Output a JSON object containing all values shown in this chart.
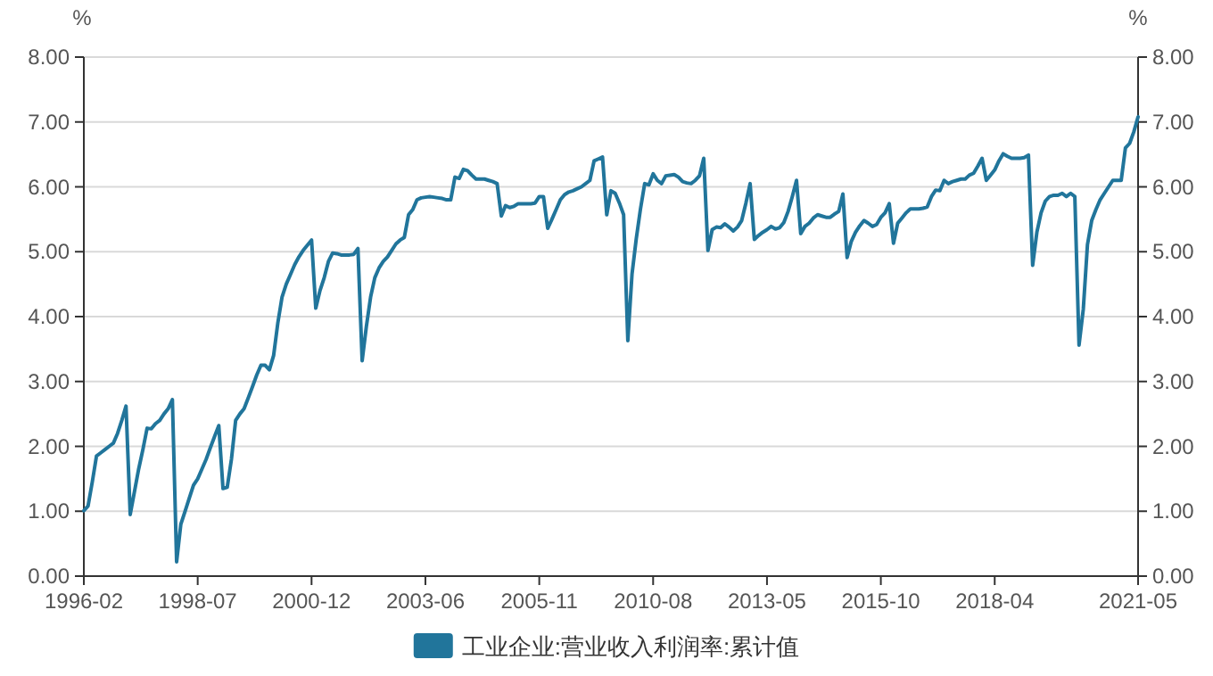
{
  "chart_data": {
    "type": "line",
    "ylabel": "%",
    "y2label": "%",
    "categories": [
      "1996-02",
      null,
      null,
      null,
      null,
      null,
      null,
      null,
      null,
      null,
      null,
      null,
      null,
      null,
      null,
      null,
      null,
      null,
      null,
      null,
      null,
      null,
      null,
      null,
      null,
      null,
      null,
      "1998-07",
      null,
      null,
      null,
      null,
      null,
      null,
      null,
      null,
      null,
      null,
      null,
      null,
      null,
      null,
      null,
      null,
      null,
      null,
      null,
      null,
      null,
      null,
      null,
      null,
      null,
      null,
      "2000-12",
      null,
      null,
      null,
      null,
      null,
      null,
      null,
      null,
      null,
      null,
      null,
      null,
      null,
      null,
      null,
      null,
      null,
      null,
      null,
      null,
      null,
      null,
      null,
      null,
      null,
      null,
      "2003-06",
      null,
      null,
      null,
      null,
      null,
      null,
      null,
      null,
      null,
      null,
      null,
      null,
      null,
      null,
      null,
      null,
      null,
      null,
      null,
      null,
      null,
      null,
      null,
      null,
      null,
      null,
      "2005-11",
      null,
      null,
      null,
      null,
      null,
      null,
      null,
      null,
      null,
      null,
      null,
      null,
      null,
      null,
      null,
      null,
      null,
      null,
      null,
      null,
      null,
      null,
      null,
      null,
      null,
      null,
      "2010-08",
      null,
      null,
      null,
      null,
      null,
      null,
      null,
      null,
      null,
      null,
      null,
      null,
      null,
      null,
      null,
      null,
      null,
      null,
      null,
      null,
      null,
      null,
      null,
      null,
      null,
      null,
      "2013-05",
      null,
      null,
      null,
      null,
      null,
      null,
      null,
      null,
      null,
      null,
      null,
      null,
      null,
      null,
      null,
      null,
      null,
      null,
      null,
      null,
      null,
      null,
      null,
      null,
      null,
      null,
      "2015-10",
      null,
      null,
      null,
      null,
      null,
      null,
      null,
      null,
      null,
      null,
      null,
      null,
      null,
      null,
      null,
      null,
      null,
      null,
      null,
      null,
      null,
      null,
      null,
      null,
      null,
      null,
      "2018-04",
      null,
      null,
      null,
      null,
      null,
      null,
      null,
      null,
      null,
      null,
      null,
      null,
      null,
      null,
      null,
      null,
      null,
      null,
      null,
      null,
      null,
      null,
      null,
      null,
      null,
      null,
      null,
      null,
      null,
      null,
      null,
      null,
      null,
      "2021-05"
    ],
    "series": [
      {
        "name": "工业企业:营业收入利润率:累计值",
        "color": "#21759b",
        "values": [
          1.01,
          1.08,
          1.45,
          1.85,
          1.9,
          1.95,
          2.0,
          2.05,
          2.2,
          2.4,
          2.62,
          0.95,
          1.3,
          1.65,
          1.95,
          2.28,
          2.27,
          2.35,
          2.4,
          2.5,
          2.58,
          2.72,
          0.22,
          0.8,
          1.0,
          1.2,
          1.4,
          1.5,
          1.65,
          1.8,
          1.98,
          2.15,
          2.32,
          1.35,
          1.37,
          1.8,
          2.4,
          2.5,
          2.58,
          2.75,
          2.92,
          3.1,
          3.25,
          3.25,
          3.18,
          3.4,
          3.9,
          4.3,
          4.5,
          4.65,
          4.8,
          4.92,
          5.02,
          5.1,
          5.18,
          4.13,
          4.4,
          4.6,
          4.85,
          4.98,
          4.97,
          4.95,
          4.95,
          4.95,
          4.96,
          5.05,
          3.32,
          3.85,
          4.3,
          4.6,
          4.75,
          4.85,
          4.92,
          5.02,
          5.12,
          5.18,
          5.22,
          5.57,
          5.65,
          5.8,
          5.83,
          5.84,
          5.85,
          5.84,
          5.83,
          5.82,
          5.8,
          5.8,
          6.15,
          6.13,
          6.27,
          6.25,
          6.18,
          6.12,
          6.12,
          6.12,
          6.1,
          6.08,
          6.05,
          5.55,
          5.71,
          5.68,
          5.7,
          5.74,
          5.74,
          5.74,
          5.74,
          5.75,
          5.85,
          5.85,
          5.36,
          5.5,
          5.65,
          5.8,
          5.88,
          5.92,
          5.94,
          5.97,
          6.0,
          6.05,
          6.1,
          6.4,
          6.43,
          6.46,
          5.57,
          5.94,
          5.9,
          5.75,
          5.57,
          3.63,
          4.66,
          5.2,
          5.66,
          6.05,
          6.03,
          6.2,
          6.1,
          6.05,
          6.17,
          6.18,
          6.19,
          6.15,
          6.08,
          6.06,
          6.05,
          6.1,
          6.17,
          6.44,
          5.02,
          5.34,
          5.38,
          5.37,
          5.43,
          5.38,
          5.32,
          5.38,
          5.48,
          5.75,
          6.05,
          5.19,
          5.25,
          5.3,
          5.34,
          5.39,
          5.35,
          5.37,
          5.45,
          5.62,
          5.85,
          6.1,
          5.28,
          5.39,
          5.44,
          5.52,
          5.57,
          5.55,
          5.53,
          5.53,
          5.58,
          5.62,
          5.89,
          4.91,
          5.16,
          5.3,
          5.4,
          5.48,
          5.44,
          5.39,
          5.42,
          5.53,
          5.6,
          5.74,
          5.13,
          5.44,
          5.52,
          5.6,
          5.66,
          5.66,
          5.66,
          5.67,
          5.69,
          5.85,
          5.95,
          5.94,
          6.1,
          6.05,
          6.08,
          6.1,
          6.12,
          6.12,
          6.18,
          6.21,
          6.32,
          6.44,
          6.1,
          6.18,
          6.26,
          6.4,
          6.51,
          6.47,
          6.44,
          6.44,
          6.44,
          6.45,
          6.49,
          4.79,
          5.3,
          5.6,
          5.78,
          5.85,
          5.87,
          5.87,
          5.9,
          5.85,
          5.9,
          5.85,
          3.56,
          4.11,
          5.11,
          5.48,
          5.65,
          5.8,
          5.9,
          6.0,
          6.1,
          6.1,
          6.1,
          6.6,
          6.67,
          6.85,
          7.08
        ]
      }
    ],
    "ylim": [
      0,
      8
    ],
    "yticks": [
      {
        "value": 0,
        "label": "0.00"
      },
      {
        "value": 1,
        "label": "1.00"
      },
      {
        "value": 2,
        "label": "2.00"
      },
      {
        "value": 3,
        "label": "3.00"
      },
      {
        "value": 4,
        "label": "4.00"
      },
      {
        "value": 5,
        "label": "5.00"
      },
      {
        "value": 6,
        "label": "6.00"
      },
      {
        "value": 7,
        "label": "7.00"
      },
      {
        "value": 8,
        "label": "8.00"
      }
    ],
    "y2lim": [
      0,
      8
    ],
    "y2ticks": [
      {
        "value": 0,
        "label": "0.00"
      },
      {
        "value": 1,
        "label": "1.00"
      },
      {
        "value": 2,
        "label": "2.00"
      },
      {
        "value": 3,
        "label": "3.00"
      },
      {
        "value": 4,
        "label": "4.00"
      },
      {
        "value": 5,
        "label": "5.00"
      },
      {
        "value": 6,
        "label": "6.00"
      },
      {
        "value": 7,
        "label": "7.00"
      },
      {
        "value": 8,
        "label": "8.00"
      }
    ],
    "grid": "y",
    "legend": "bottom",
    "marker": "none",
    "line_style": "solid"
  }
}
